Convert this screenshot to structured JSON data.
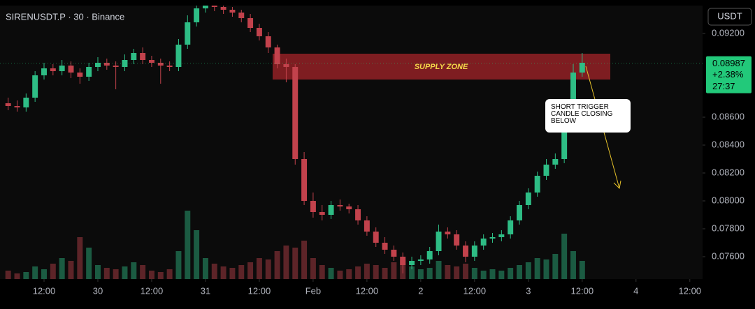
{
  "chart_data": {
    "type": "candlestick",
    "title": "SIRENUSDT.P · 30 · Binance",
    "currency": "USDT",
    "zone_label": "SUPPLY ZONE",
    "annotation": "SHORT TRIGGER CANDLE CLOSING BELOW",
    "last_price": {
      "value": 0.08987,
      "change": "+2.38%",
      "countdown": "27:37"
    },
    "up_color": "#2ebd85",
    "down_color": "#c2424c",
    "last_color": "#22c97a",
    "grid": false,
    "x": [
      -4,
      -3,
      -2,
      -1,
      0,
      1,
      2,
      3,
      4,
      5,
      6,
      7,
      8,
      9,
      10,
      11,
      12,
      13,
      14,
      15,
      16,
      17,
      18,
      19,
      20,
      21,
      22,
      23,
      24,
      25,
      26,
      27,
      28,
      29,
      30,
      31,
      32,
      33,
      34,
      35,
      36,
      37,
      38,
      39,
      40,
      41,
      42,
      43,
      44,
      45,
      46,
      47,
      48,
      49,
      50,
      51,
      52,
      53,
      54,
      55,
      56,
      57,
      58,
      59,
      60
    ],
    "open": [
      0.087,
      0.0868,
      0.0867,
      0.0874,
      0.089,
      0.0895,
      0.0893,
      0.0897,
      0.0892,
      0.0889,
      0.0896,
      0.0899,
      0.0897,
      0.0896,
      0.0901,
      0.0906,
      0.0901,
      0.0899,
      0.0897,
      0.0896,
      0.0912,
      0.0928,
      0.0938,
      0.094,
      0.0939,
      0.0937,
      0.0935,
      0.0931,
      0.0924,
      0.0918,
      0.091,
      0.0898,
      0.0896,
      0.083,
      0.08,
      0.0792,
      0.079,
      0.0797,
      0.0796,
      0.0794,
      0.0786,
      0.0778,
      0.077,
      0.0765,
      0.076,
      0.0754,
      0.0757,
      0.0758,
      0.0764,
      0.0778,
      0.0776,
      0.0768,
      0.076,
      0.0768,
      0.0773,
      0.0774,
      0.0776,
      0.0786,
      0.0797,
      0.0806,
      0.0818,
      0.0826,
      0.083,
      0.086,
      0.0892
    ],
    "high": [
      0.0874,
      0.0872,
      0.0877,
      0.0893,
      0.0899,
      0.0898,
      0.0901,
      0.09,
      0.0895,
      0.0899,
      0.0903,
      0.0902,
      0.09,
      0.0905,
      0.0909,
      0.091,
      0.0904,
      0.0902,
      0.09,
      0.0916,
      0.0933,
      0.0942,
      0.0945,
      0.0944,
      0.0942,
      0.0939,
      0.0937,
      0.0934,
      0.0927,
      0.0921,
      0.0912,
      0.0902,
      0.0898,
      0.0835,
      0.0806,
      0.0797,
      0.08,
      0.0801,
      0.0798,
      0.0797,
      0.0789,
      0.0781,
      0.0774,
      0.0768,
      0.0763,
      0.076,
      0.0761,
      0.0767,
      0.0783,
      0.0781,
      0.0779,
      0.0771,
      0.0771,
      0.0776,
      0.0777,
      0.0779,
      0.0789,
      0.08,
      0.0809,
      0.0821,
      0.083,
      0.0834,
      0.0866,
      0.0898,
      0.0906
    ],
    "low": [
      0.0865,
      0.0864,
      0.0864,
      0.0871,
      0.0887,
      0.089,
      0.089,
      0.0888,
      0.0884,
      0.0886,
      0.0893,
      0.0894,
      0.088,
      0.0893,
      0.0898,
      0.0898,
      0.0896,
      0.0884,
      0.0893,
      0.0893,
      0.0909,
      0.0925,
      0.0935,
      0.0936,
      0.0934,
      0.0932,
      0.0928,
      0.0921,
      0.0915,
      0.0906,
      0.0895,
      0.0885,
      0.0826,
      0.0797,
      0.0788,
      0.0786,
      0.0787,
      0.0793,
      0.0791,
      0.0783,
      0.0775,
      0.0767,
      0.0762,
      0.0757,
      0.0748,
      0.0751,
      0.0754,
      0.0755,
      0.0761,
      0.0773,
      0.0765,
      0.0756,
      0.0757,
      0.0765,
      0.077,
      0.0771,
      0.0773,
      0.0783,
      0.0794,
      0.0803,
      0.0815,
      0.0823,
      0.0827,
      0.0857,
      0.0889
    ],
    "close": [
      0.0868,
      0.0867,
      0.0874,
      0.089,
      0.0895,
      0.0893,
      0.0897,
      0.0892,
      0.0889,
      0.0896,
      0.0899,
      0.0897,
      0.0896,
      0.0901,
      0.0906,
      0.0901,
      0.0899,
      0.0897,
      0.0896,
      0.0912,
      0.0928,
      0.0938,
      0.094,
      0.0939,
      0.0937,
      0.0935,
      0.0931,
      0.0924,
      0.0918,
      0.091,
      0.0898,
      0.0896,
      0.083,
      0.08,
      0.0792,
      0.079,
      0.0797,
      0.0796,
      0.0794,
      0.0786,
      0.0778,
      0.077,
      0.0765,
      0.076,
      0.0754,
      0.0757,
      0.0758,
      0.0764,
      0.0778,
      0.0776,
      0.0768,
      0.076,
      0.0768,
      0.0773,
      0.0774,
      0.0776,
      0.0786,
      0.0797,
      0.0806,
      0.0818,
      0.0826,
      0.083,
      0.086,
      0.0892,
      0.0899
    ],
    "volume": [
      12,
      8,
      10,
      18,
      14,
      22,
      30,
      26,
      60,
      45,
      20,
      16,
      14,
      18,
      24,
      20,
      12,
      10,
      14,
      40,
      98,
      70,
      30,
      22,
      18,
      16,
      20,
      24,
      30,
      28,
      40,
      48,
      45,
      55,
      30,
      20,
      16,
      12,
      14,
      18,
      22,
      20,
      16,
      24,
      28,
      18,
      14,
      16,
      26,
      20,
      18,
      22,
      16,
      12,
      14,
      12,
      16,
      20,
      24,
      30,
      28,
      36,
      65,
      40,
      26
    ],
    "vlim": [
      0,
      100
    ],
    "xlim": [
      -4.91,
      73.42
    ],
    "ylim": [
      0.0744,
      0.094
    ],
    "xticks": [
      {
        "value": 0,
        "label": "12:00"
      },
      {
        "value": 6,
        "label": "30"
      },
      {
        "value": 12,
        "label": "12:00"
      },
      {
        "value": 18,
        "label": "31"
      },
      {
        "value": 24,
        "label": "12:00"
      },
      {
        "value": 30,
        "label": "Feb"
      },
      {
        "value": 36,
        "label": "12:00"
      },
      {
        "value": 42,
        "label": "2"
      },
      {
        "value": 48,
        "label": "12:00"
      },
      {
        "value": 54,
        "label": "3"
      },
      {
        "value": 60,
        "label": "12:00"
      },
      {
        "value": 66,
        "label": "4"
      },
      {
        "value": 72,
        "label": "12:00"
      }
    ],
    "yticks": [
      {
        "value": 0.092,
        "label": "0.09200"
      },
      {
        "value": 0.086,
        "label": "0.08600"
      },
      {
        "value": 0.084,
        "label": "0.08400"
      },
      {
        "value": 0.082,
        "label": "0.08200"
      },
      {
        "value": 0.08,
        "label": "0.08000"
      },
      {
        "value": 0.078,
        "label": "0.07800"
      },
      {
        "value": 0.076,
        "label": "0.07600"
      }
    ]
  }
}
